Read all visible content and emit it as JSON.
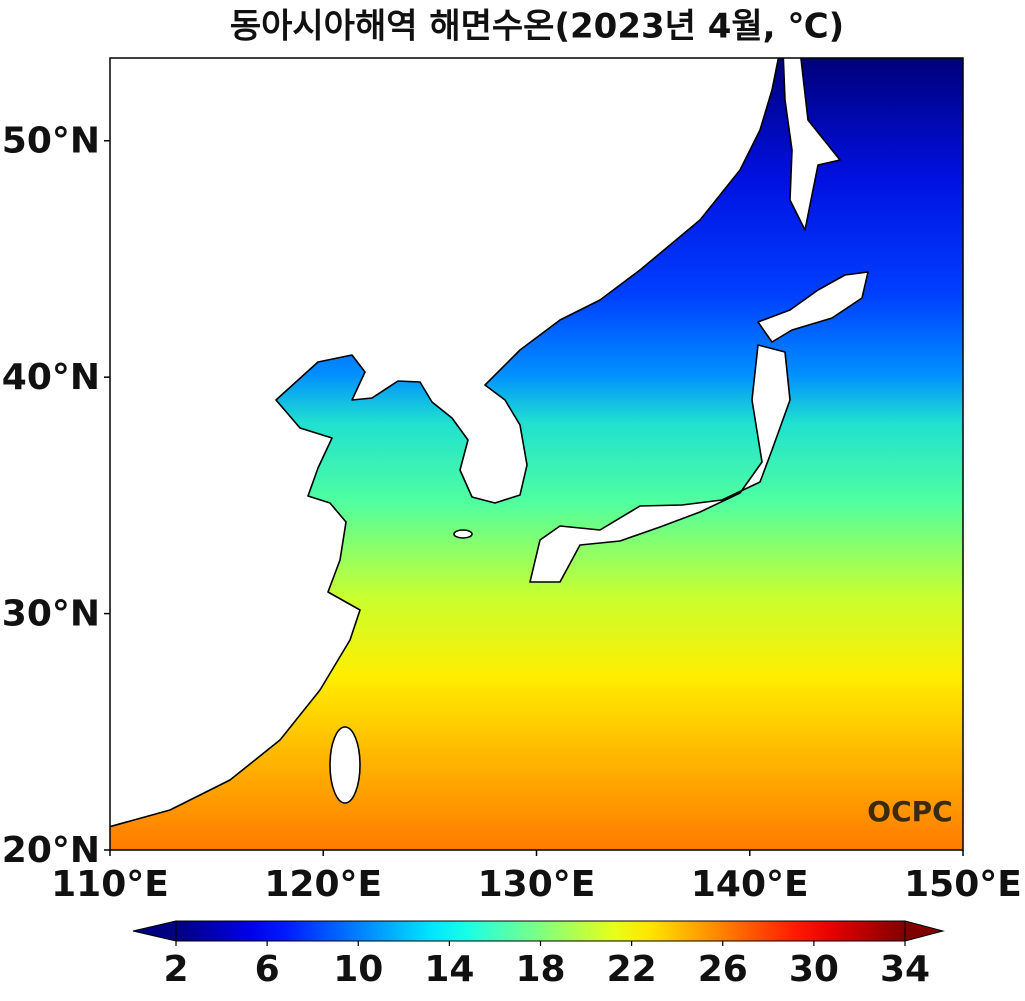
{
  "title": "동아시아해역 해면수온(2023년 4월, ℃)",
  "logo": "OCPC",
  "map": {
    "xlim": [
      110,
      150
    ],
    "ylim": [
      20,
      53.5
    ],
    "xticks": [
      {
        "value": 110,
        "label": "110°E"
      },
      {
        "value": 120,
        "label": "120°E"
      },
      {
        "value": 130,
        "label": "130°E"
      },
      {
        "value": 140,
        "label": "140°E"
      },
      {
        "value": 150,
        "label": "150°E"
      }
    ],
    "yticks": [
      {
        "value": 20,
        "label": "20°N"
      },
      {
        "value": 30,
        "label": "30°N"
      },
      {
        "value": 40,
        "label": "40°N"
      },
      {
        "value": 50,
        "label": "50°N"
      }
    ]
  },
  "colorbar": {
    "colormap": "jet",
    "lim": [
      2,
      34
    ],
    "ticks": [
      2,
      6,
      10,
      14,
      18,
      22,
      26,
      30,
      34
    ],
    "extend": "both"
  }
}
